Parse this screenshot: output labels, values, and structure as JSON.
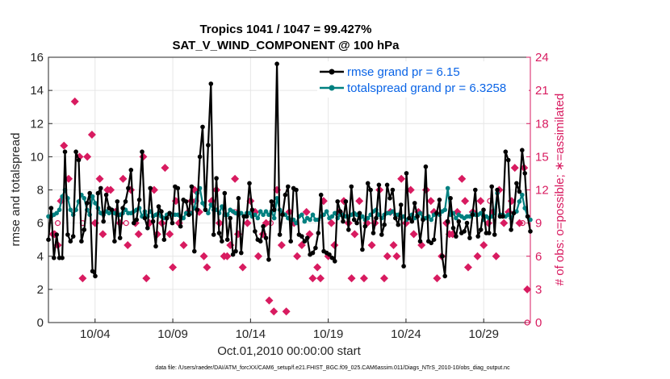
{
  "chart_data": {
    "type": "line",
    "title": "Tropics 1041 / 1047 = 99.427%",
    "subtitle": "SAT_V_WIND_COMPONENT @ 100 hPa",
    "xlabel": "Oct.01,2010 00:00:00 start",
    "ylabel": "rmse and totalspread",
    "y2label": "# of obs: o=possible; ∗=assimilated",
    "footnote": "data file: /Users/raeder/DAI/ATM_forcXX/CAM6_setup/f.e21.FHIST_BGC.f09_025.CAM6assim.011/Diags_NTrS_2010-10/obs_diag_output.nc",
    "xlim": [
      1.0,
      32.0
    ],
    "xticks": [
      4,
      9,
      14,
      19,
      24,
      29
    ],
    "xtick_labels": [
      "10/04",
      "10/09",
      "10/14",
      "10/19",
      "10/24",
      "10/29"
    ],
    "ylim": [
      0,
      16
    ],
    "yticks": [
      0,
      2,
      4,
      6,
      8,
      10,
      12,
      14,
      16
    ],
    "y2lim": [
      0,
      24
    ],
    "y2ticks": [
      0,
      3,
      6,
      9,
      12,
      15,
      18,
      21,
      24
    ],
    "legend_position": "top-right",
    "colors": {
      "rmse": "#000000",
      "spread": "#008080",
      "obs": "#d81b60",
      "legend_text": "#0a64e6",
      "grid": "#e6e6e6"
    },
    "series": [
      {
        "name": "rmse grand pr = 6.15",
        "color": "#000000",
        "values": [
          5.0,
          6.9,
          3.9,
          5.3,
          3.9,
          3.9,
          10.3,
          5.3,
          4.9,
          5.2,
          10.3,
          9.8,
          4.9,
          5.6,
          7.2,
          7.8,
          3.1,
          2.8,
          7.8,
          8.1,
          6.1,
          7.7,
          6.9,
          6.8,
          4.9,
          7.3,
          5.1,
          6.9,
          7.3,
          8.1,
          9.2,
          6.0,
          6.2,
          7.4,
          10.3,
          6.3,
          5.7,
          8.1,
          6.1,
          4.6,
          7.0,
          6.7,
          5.0,
          6.3,
          6.6,
          6.0,
          8.2,
          8.1,
          5.8,
          7.4,
          7.3,
          6.5,
          8.2,
          4.3,
          6.8,
          10.0,
          11.8,
          6.8,
          10.7,
          14.4,
          5.3,
          8.7,
          5.4,
          4.9,
          7.8,
          5.0,
          6.3,
          4.1,
          4.3,
          7.5,
          4.2,
          6.4,
          6.4,
          8.4,
          6.8,
          5.5,
          5.0,
          4.9,
          5.8,
          5.1,
          3.8,
          7.3,
          6.8,
          15.6,
          5.3,
          6.5,
          7.7,
          8.2,
          4.9,
          8.1,
          8.0,
          5.3,
          5.2,
          4.9,
          5.1,
          4.1,
          4.2,
          4.5,
          5.4,
          7.7,
          4.3,
          4.2,
          4.1,
          3.9,
          3.7,
          7.3,
          6.7,
          6.1,
          7.3,
          5.6,
          8.2,
          6.2,
          6.0,
          6.6,
          4.4,
          5.8,
          8.4,
          8.0,
          5.4,
          6.3,
          8.3,
          5.3,
          5.9,
          8.3,
          7.5,
          8.0,
          6.3,
          5.9,
          7.1,
          3.4,
          9.0,
          6.3,
          6.1,
          7.2,
          6.4,
          4.9,
          6.2,
          9.4,
          4.9,
          4.8,
          5.0,
          6.6,
          7.4,
          4.0,
          2.8,
          6.1,
          7.5,
          5.7,
          5.2,
          6.1,
          5.4,
          5.5,
          6.0,
          5.1,
          6.5,
          8.0,
          5.2,
          5.6,
          6.8,
          5.4,
          5.4,
          8.2,
          5.3,
          8.0,
          6.4,
          6.4,
          10.3,
          9.8,
          5.6,
          6.6,
          8.4,
          7.9,
          10.4,
          9.0,
          6.4,
          5.5
        ]
      },
      {
        "name": "totalspread grand pr = 6.3258",
        "color": "#008080",
        "values": [
          6.4,
          6.4,
          6.5,
          6.6,
          6.8,
          7.6,
          8.0,
          7.5,
          6.8,
          6.5,
          6.8,
          7.3,
          7.7,
          7.5,
          6.8,
          6.5,
          7.6,
          7.2,
          6.9,
          6.6,
          6.5,
          6.7,
          6.6,
          6.8,
          6.6,
          6.5,
          6.5,
          6.6,
          6.8,
          6.6,
          6.6,
          6.7,
          6.8,
          6.9,
          6.4,
          6.7,
          6.4,
          6.7,
          6.4,
          6.5,
          6.6,
          6.4,
          6.3,
          6.5,
          6.6,
          6.5,
          6.5,
          6.5,
          6.4,
          6.3,
          6.6,
          6.5,
          6.6,
          6.9,
          7.8,
          8.1,
          7.2,
          6.8,
          6.6,
          7.1,
          6.8,
          6.8,
          6.6,
          7.0,
          6.5,
          6.5,
          6.8,
          6.7,
          6.6,
          6.5,
          6.6,
          6.4,
          6.6,
          6.6,
          6.4,
          6.5,
          6.3,
          6.7,
          6.5,
          6.7,
          6.5,
          6.7,
          6.3,
          7.5,
          6.8,
          6.6,
          6.5,
          6.3,
          6.2,
          6.2,
          6.0,
          6.4,
          6.5,
          6.1,
          6.3,
          6.2,
          6.5,
          6.2,
          6.2,
          6.4,
          6.5,
          6.7,
          6.3,
          6.4,
          6.6,
          6.3,
          6.5,
          6.5,
          6.4,
          6.4,
          6.5,
          6.6,
          6.5,
          6.3,
          6.4,
          6.2,
          6.3,
          6.5,
          6.7,
          6.8,
          6.5,
          6.3,
          6.5,
          6.6,
          6.6,
          6.7,
          6.5,
          6.5,
          6.3,
          6.4,
          6.2,
          6.3,
          6.5,
          6.3,
          6.5,
          6.6,
          6.3,
          6.3,
          6.4,
          6.2,
          6.5,
          6.6,
          6.5,
          6.7,
          6.8,
          8.1,
          6.5,
          6.6,
          6.3,
          6.5,
          6.4,
          6.3,
          6.4,
          6.4,
          6.6,
          6.5,
          6.5,
          6.6,
          6.2,
          6.4,
          6.3,
          6.4,
          6.6,
          7.8,
          6.5,
          6.5,
          6.4,
          6.5,
          6.3,
          6.6,
          6.7,
          7.3,
          7.7,
          6.9,
          6.4,
          6.2
        ]
      },
      {
        "name": "# of obs assimilated",
        "color": "#d81b60",
        "x": [
          1.3,
          1.4,
          1.6,
          1.8,
          2.0,
          2.3,
          2.7,
          3.0,
          3.2,
          3.5,
          3.8,
          4.0,
          4.3,
          4.5,
          4.8,
          5.0,
          5.3,
          5.6,
          5.8,
          6.1,
          6.3,
          6.6,
          6.8,
          7.1,
          7.3,
          7.5,
          7.8,
          8.0,
          8.3,
          8.5,
          8.8,
          9.0,
          9.2,
          9.4,
          9.7,
          10.0,
          10.2,
          10.4,
          10.7,
          11.0,
          11.2,
          11.5,
          11.8,
          12.0,
          12.3,
          12.5,
          12.7,
          13.0,
          13.2,
          13.5,
          13.8,
          14.0,
          14.3,
          14.5,
          14.8,
          15.0,
          15.2,
          15.5,
          15.7,
          16.0,
          16.3,
          16.5,
          16.8,
          17.0,
          17.3,
          17.6,
          17.8,
          18.0,
          18.3,
          18.5,
          18.7,
          19.0,
          19.2,
          19.4,
          19.7,
          20.0,
          20.3,
          20.5,
          20.7,
          21.0,
          21.3,
          21.5,
          21.8,
          22.0,
          22.3,
          22.6,
          22.8,
          23.0,
          23.2,
          23.4,
          23.7,
          24.0,
          24.3,
          24.5,
          24.8,
          25.0,
          25.3,
          25.6,
          25.8,
          26.0,
          26.3,
          26.6,
          26.8,
          27.0,
          27.3,
          27.6,
          27.8,
          28.0,
          28.3,
          28.6,
          28.8,
          29.0,
          29.3,
          29.6,
          29.8,
          30.0,
          30.3,
          30.6,
          30.8,
          31.0,
          31.3,
          31.6,
          31.8
        ],
        "values": [
          8,
          8,
          7,
          11,
          16,
          13,
          20,
          15,
          4,
          15,
          17,
          9,
          13,
          8,
          12,
          12,
          10,
          9,
          13,
          7,
          12,
          9,
          8,
          15,
          4,
          9,
          12,
          8,
          9,
          14,
          8,
          5,
          11,
          9,
          7,
          10,
          11,
          12,
          10,
          6,
          5,
          11,
          12,
          9,
          6,
          6,
          7,
          13,
          8,
          5,
          9,
          11,
          10,
          6,
          8,
          9,
          2,
          1,
          12,
          7,
          1,
          10,
          9,
          6,
          7,
          10,
          8,
          4,
          5,
          4,
          11,
          6,
          9,
          7,
          10,
          11,
          9,
          4,
          8,
          11,
          4,
          9,
          7,
          9,
          12,
          4,
          6,
          10,
          7,
          6,
          13,
          9,
          12,
          8,
          10,
          7,
          12,
          11,
          10,
          4,
          6,
          9,
          8,
          8,
          10,
          13,
          11,
          5,
          10,
          6,
          11,
          7,
          9,
          10,
          6,
          12,
          9,
          10,
          11,
          14,
          9,
          14,
          3
        ]
      },
      {
        "name": "# of obs possible",
        "color": "#d81b60",
        "x": [
          1.3,
          1.6,
          3.2,
          4.8,
          6.0,
          10.5,
          13.0,
          15.3,
          19.0,
          23.0,
          29.4,
          31.5,
          31.8
        ],
        "values": [
          8,
          9,
          9,
          12,
          9,
          11,
          10,
          9,
          6,
          10,
          11,
          9,
          0
        ]
      }
    ]
  }
}
